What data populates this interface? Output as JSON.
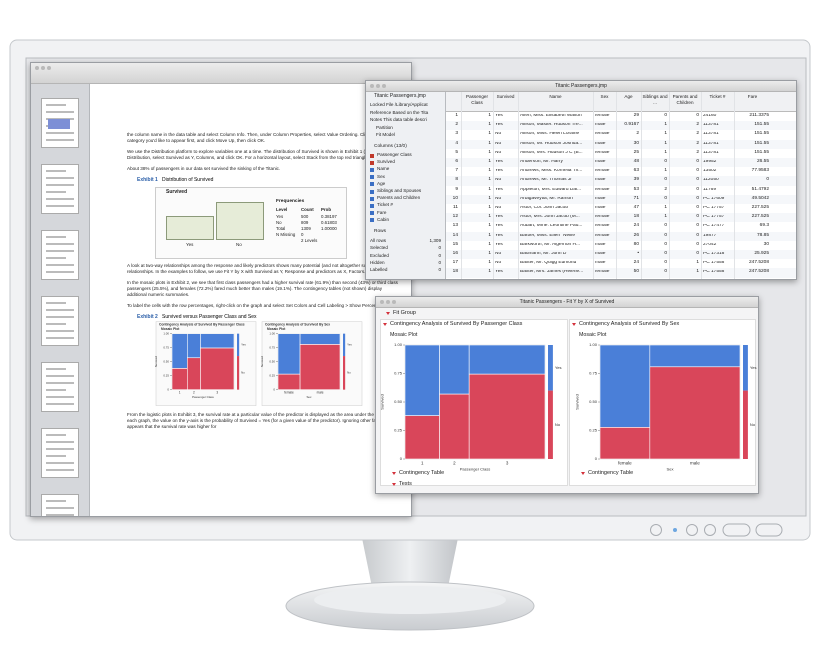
{
  "pdf": {
    "paragraphs": [
      "the column name in the data table and select Column Info. Then, under Column Properties, select Value Ordering. Click on the category you'd like to appear first, and click Move Up, then click OK.",
      "We use the Distribution platform to explore variables one at a time. The distribution of Survived is shown in Exhibit 1 (use Analyze > Distribution, select Survived as Y, Columns, and click OK. For a horizontal layout, select Stack from the top red triangle.)",
      "About 38% of passengers in our data set survived the sinking of the Titanic."
    ],
    "exhibit1": {
      "label": "Exhibit 1",
      "caption": "Distribution of Survived"
    },
    "dist": {
      "title": "Survived",
      "frequencies_title": "Frequencies",
      "header": [
        "Level",
        "Count",
        "Prob"
      ],
      "rows": [
        {
          "level": "Yes",
          "count": 500,
          "prob": "0.38197"
        },
        {
          "level": "No",
          "count": 809,
          "prob": "0.61803"
        },
        {
          "level": "Total",
          "count": 1309,
          "prob": "1.00000"
        }
      ],
      "missing": {
        "label": "N Missing",
        "count": 0
      },
      "levels": "2 Levels"
    },
    "paragraphs2": [
      "A look at two-way relationships among the response and likely predictors shows many potential (and not altogether surprising) relationships. In the examples to follow, we use Fit Y by X with Survived as Y, Response and predictors as X, Factors.",
      "In the mosaic plots in Exhibit 2, we see that first class passengers had a higher survival rate (61.9%) than second (43%) or third class passengers (25.5%), and females (72.2%) fared much better than males (19.1%). The contingency tables (not shown) display additional numeric summaries.",
      "To label the cells with the row percentages, right-click on the graph and select Set Colors and Cell Labeling > Show Percents."
    ],
    "exhibit2": {
      "label": "Exhibit 2",
      "caption": "Survived versus Passenger Class and Sex"
    },
    "paragraphs3": [
      "From the logistic plots in Exhibit 3, the survival rate at a particular value of the predictor is displayed as the area under the line. In each graph, the value on the y-axis is the probability of Survived = Yes (for a given value of the predictor). Ignoring other factors, it appears that the survival rate was higher for"
    ]
  },
  "table": {
    "title": "Titanic Passengers.jmp",
    "panel": {
      "title": "Titanic Passengers.jmp",
      "info": [
        "Locked File  /Library/Applicat",
        "Reference  Based on the Tita",
        "Notes  This data table descri",
        "Partition",
        "Fit Model"
      ],
      "columns_title": "Columns (13/0)",
      "columns": [
        "Passenger Class",
        "Survived",
        "Name",
        "Sex",
        "Age",
        "Siblings and Spouses",
        "Parents and Children",
        "Ticket #",
        "Fare",
        "Cabin"
      ],
      "rows_title": "Rows",
      "row_stats": [
        [
          "All rows",
          "1,309"
        ],
        [
          "Selected",
          "0"
        ],
        [
          "Excluded",
          "0"
        ],
        [
          "Hidden",
          "0"
        ],
        [
          "Labelled",
          "0"
        ]
      ]
    },
    "columns": [
      "Passenger Class",
      "Survived",
      "Name",
      "Sex",
      "Age",
      "Siblings and ...",
      "Parents and Children",
      "Ticket #",
      "Fare"
    ],
    "rows": [
      [
        "1",
        "1",
        "Yes",
        "Allen, Miss. Elisabeth Walton",
        "female",
        "29",
        "0",
        "0",
        "24160",
        "211.3375"
      ],
      [
        "2",
        "1",
        "Yes",
        "Allison, Master. Hudson Tre...",
        "male",
        "0.9167",
        "1",
        "2",
        "113781",
        "151.55"
      ],
      [
        "3",
        "1",
        "No",
        "Allison, Miss. Helen Loraine",
        "female",
        "2",
        "1",
        "2",
        "113781",
        "151.55"
      ],
      [
        "4",
        "1",
        "No",
        "Allison, Mr. Hudson Joshua...",
        "male",
        "30",
        "1",
        "2",
        "113781",
        "151.55"
      ],
      [
        "5",
        "1",
        "No",
        "Allison, Mrs. Hudson J C (B...",
        "female",
        "25",
        "1",
        "2",
        "113781",
        "151.55"
      ],
      [
        "6",
        "1",
        "Yes",
        "Anderson, Mr. Harry",
        "male",
        "48",
        "0",
        "0",
        "19952",
        "26.55"
      ],
      [
        "7",
        "1",
        "Yes",
        "Andrews, Miss. Kornelia Th...",
        "female",
        "63",
        "1",
        "0",
        "13502",
        "77.9583"
      ],
      [
        "8",
        "1",
        "No",
        "Andrews, Mr. Thomas Jr",
        "male",
        "39",
        "0",
        "0",
        "112050",
        "0"
      ],
      [
        "9",
        "1",
        "Yes",
        "Appleton, Mrs. Edward Dal...",
        "female",
        "53",
        "2",
        "0",
        "11769",
        "51.4792"
      ],
      [
        "10",
        "1",
        "No",
        "Artagaveytia, Mr. Ramon",
        "male",
        "71",
        "0",
        "0",
        "PC 17609",
        "49.5042"
      ],
      [
        "11",
        "1",
        "No",
        "Astor, Col. John Jacob",
        "male",
        "47",
        "1",
        "0",
        "PC 17757",
        "227.525"
      ],
      [
        "12",
        "1",
        "Yes",
        "Astor, Mrs. John Jacob (M...",
        "female",
        "18",
        "1",
        "0",
        "PC 17757",
        "227.525"
      ],
      [
        "13",
        "1",
        "Yes",
        "Aubart, Mme. Leontine Pau...",
        "female",
        "24",
        "0",
        "0",
        "PC 17477",
        "69.3"
      ],
      [
        "14",
        "1",
        "Yes",
        "Barber, Miss. Ellen \"Nellie\"",
        "female",
        "26",
        "0",
        "0",
        "19877",
        "78.85"
      ],
      [
        "15",
        "1",
        "Yes",
        "Barkworth, Mr. Algernon H...",
        "male",
        "80",
        "0",
        "0",
        "27042",
        "30"
      ],
      [
        "16",
        "1",
        "No",
        "Baumann, Mr. John D",
        "male",
        "•",
        "0",
        "0",
        "PC 17318",
        "25.925"
      ],
      [
        "17",
        "1",
        "No",
        "Baxter, Mr. Quigg Edmond",
        "male",
        "24",
        "0",
        "1",
        "PC 17558",
        "247.5208"
      ],
      [
        "18",
        "1",
        "Yes",
        "Baxter, Mrs. James (Helene...",
        "female",
        "50",
        "0",
        "1",
        "PC 17558",
        "247.5208"
      ]
    ]
  },
  "fit": {
    "title": "Titanic Passengers - Fit Y by X of Survived",
    "group": "Fit Group",
    "yticks": [
      0,
      0.25,
      {
        "value": 0.5,
        "label": "0.50"
      },
      0.75,
      {
        "value": 1,
        "label": "1.00"
      }
    ],
    "panels": [
      {
        "header": "Contingency Analysis of Survived By Passenger Class",
        "mosaic_label": "Mosaic Plot",
        "y_label": "Survived",
        "x_label": "Passenger Class",
        "legend": [
          "Yes",
          "No"
        ],
        "categories": [
          "1",
          "2",
          "3"
        ],
        "counts": [
          323,
          277,
          709
        ],
        "yes": [
          61.9,
          43,
          25.5
        ],
        "no": [
          38.1,
          57,
          74.5
        ],
        "sections": [
          "Contingency Table",
          "Tests"
        ]
      },
      {
        "header": "Contingency Analysis of Survived By Sex",
        "mosaic_label": "Mosaic Plot",
        "y_label": "Survived",
        "x_label": "Sex",
        "legend": [
          "Yes",
          "No"
        ],
        "categories": [
          "female",
          "male"
        ],
        "counts": [
          466,
          843
        ],
        "yes": [
          72.2,
          19.1
        ],
        "no": [
          27.8,
          80.9
        ],
        "sections": [
          "Contingency Table"
        ]
      }
    ]
  }
}
